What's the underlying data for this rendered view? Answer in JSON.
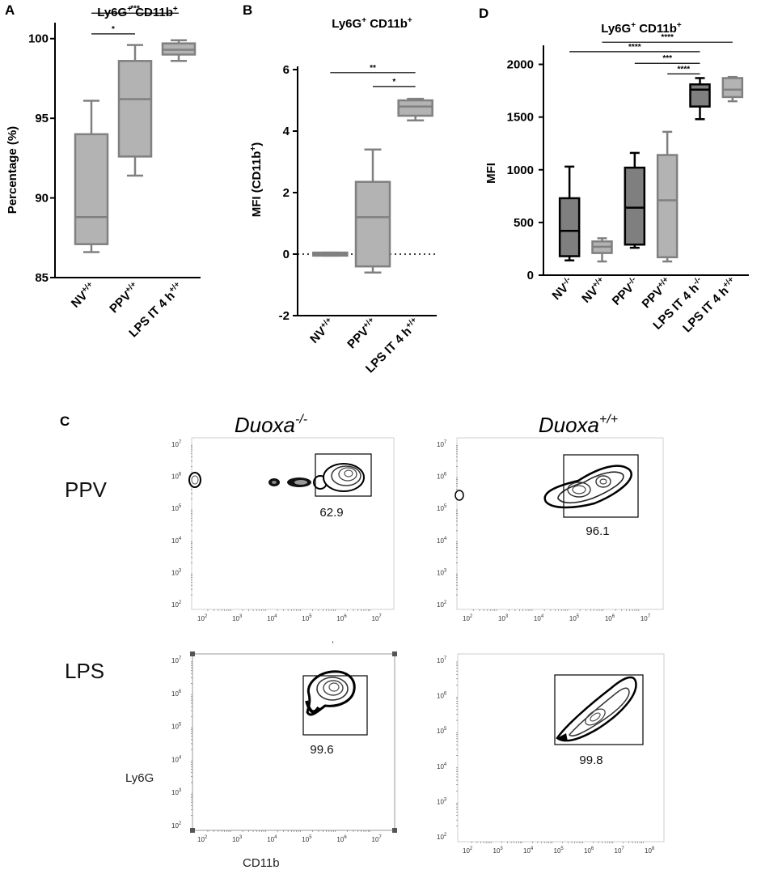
{
  "panel_letters": {
    "A": "A",
    "B": "B",
    "C": "C",
    "D": "D"
  },
  "chart_data": [
    {
      "id": "A",
      "type": "box",
      "title": "Ly6G+ CD11b+",
      "title_parts": {
        "p1": "Ly6G",
        "s1": "+",
        "p2": " CD11b",
        "s2": "+"
      },
      "ylabel": "Percentage (%)",
      "ylim": [
        85,
        100.8
      ],
      "yticks": [
        "85",
        "90",
        "95",
        "100"
      ],
      "categories": [
        {
          "base": "NV",
          "sup": "+/+"
        },
        {
          "base": "PPV",
          "sup": "+/+"
        },
        {
          "base": "LPS IT 4 h",
          "sup": "+/+"
        }
      ],
      "boxes": [
        {
          "min": 86.6,
          "q1": 87.1,
          "median": 88.8,
          "q3": 94.0,
          "max": 96.1,
          "color": "#b3b3b3"
        },
        {
          "min": 91.4,
          "q1": 92.6,
          "median": 96.2,
          "q3": 98.6,
          "max": 99.6,
          "color": "#b3b3b3"
        },
        {
          "min": 98.6,
          "q1": 99.0,
          "median": 99.3,
          "q3": 99.7,
          "max": 99.9,
          "color": "#b3b3b3"
        }
      ],
      "significance": [
        {
          "from": 1,
          "to": 2,
          "level": 102.9,
          "label": "*"
        },
        {
          "from": 0,
          "to": 2,
          "level": 101.6,
          "label": "***"
        },
        {
          "from": 0,
          "to": 1,
          "level": 100.3,
          "label": "*"
        }
      ]
    },
    {
      "id": "B",
      "type": "box",
      "title": "Ly6G+ CD11b+",
      "title_parts": {
        "p1": "Ly6G",
        "s1": "+",
        "p2": " CD11b",
        "s2": "+"
      },
      "ylabel": "MFI (CD11b+)",
      "ylabel_parts": {
        "p1": "MFI (CD11b",
        "s1": "+",
        "p2": ")"
      },
      "ylim": [
        -2,
        6
      ],
      "yticks": [
        "-2",
        "0",
        "2",
        "4",
        "6"
      ],
      "baseline": 0,
      "categories": [
        {
          "base": "NV",
          "sup": "+/+"
        },
        {
          "base": "PPV",
          "sup": "+/+"
        },
        {
          "base": "LPS IT 4 h",
          "sup": "+/+"
        }
      ],
      "boxes": [
        {
          "min": -0.05,
          "q1": -0.05,
          "median": 0.0,
          "q3": 0.05,
          "max": 0.05,
          "color": "#b3b3b3"
        },
        {
          "min": -0.6,
          "q1": -0.4,
          "median": 1.2,
          "q3": 2.35,
          "max": 3.4,
          "color": "#b3b3b3"
        },
        {
          "min": 4.35,
          "q1": 4.5,
          "median": 4.8,
          "q3": 5.0,
          "max": 5.05,
          "color": "#b3b3b3"
        }
      ],
      "significance": [
        {
          "from": 0,
          "to": 2,
          "level": 5.9,
          "label": "**"
        },
        {
          "from": 1,
          "to": 2,
          "level": 5.45,
          "label": "*"
        }
      ]
    },
    {
      "id": "D",
      "type": "box",
      "title": "Ly6G+ CD11b+",
      "title_parts": {
        "p1": "Ly6G",
        "s1": "+",
        "p2": " CD11b",
        "s2": "+"
      },
      "ylabel": "MFI",
      "ylim": [
        0,
        2150
      ],
      "yticks": [
        "0",
        "500",
        "1000",
        "1500",
        "2000"
      ],
      "categories": [
        {
          "base": "NV",
          "sup": "-/-"
        },
        {
          "base": "NV",
          "sup": "+/+"
        },
        {
          "base": "PPV",
          "sup": "-/-"
        },
        {
          "base": "PPV",
          "sup": "+/+"
        },
        {
          "base": "LPS IT 4 h",
          "sup": "-/-"
        },
        {
          "base": "LPS IT 4 h",
          "sup": "+/+"
        }
      ],
      "boxes": [
        {
          "min": 140,
          "q1": 180,
          "median": 420,
          "q3": 730,
          "max": 1030,
          "color": "#7f7f7f",
          "stroke": "#000000"
        },
        {
          "min": 130,
          "q1": 210,
          "median": 270,
          "q3": 320,
          "max": 350,
          "color": "#b3b3b3",
          "stroke": "#808080"
        },
        {
          "min": 260,
          "q1": 290,
          "median": 640,
          "q3": 1020,
          "max": 1160,
          "color": "#7f7f7f",
          "stroke": "#000000"
        },
        {
          "min": 130,
          "q1": 170,
          "median": 710,
          "q3": 1140,
          "max": 1360,
          "color": "#b3b3b3",
          "stroke": "#808080"
        },
        {
          "min": 1480,
          "q1": 1600,
          "median": 1760,
          "q3": 1810,
          "max": 1870,
          "color": "#7f7f7f",
          "stroke": "#000000"
        },
        {
          "min": 1650,
          "q1": 1690,
          "median": 1760,
          "q3": 1870,
          "max": 1880,
          "color": "#b3b3b3",
          "stroke": "#808080"
        }
      ],
      "significance": [
        {
          "from": 1,
          "to": 5,
          "level": 2210,
          "label": "****"
        },
        {
          "from": 0,
          "to": 4,
          "level": 2120,
          "label": "****"
        },
        {
          "from": 2,
          "to": 4,
          "level": 2010,
          "label": "***"
        },
        {
          "from": 3,
          "to": 4,
          "level": 1910,
          "label": "****"
        }
      ]
    },
    {
      "id": "C",
      "type": "flow_cytometry_contour",
      "xlabel": "CD11b",
      "ylabel": "Ly6G",
      "columns": [
        {
          "base": "Duoxa",
          "sup": "-/-"
        },
        {
          "base": "Duoxa",
          "sup": "+/+"
        }
      ],
      "rows": [
        "PPV",
        "LPS"
      ],
      "plots": [
        {
          "row": "PPV",
          "genotype": "-/-",
          "gate_percent": "62.9"
        },
        {
          "row": "PPV",
          "genotype": "+/+",
          "gate_percent": "96.1"
        },
        {
          "row": "LPS",
          "genotype": "-/-",
          "gate_percent": "99.6"
        },
        {
          "row": "LPS",
          "genotype": "+/+",
          "gate_percent": "99.8"
        }
      ],
      "x_ticks": [
        "2",
        "3",
        "4",
        "5",
        "6",
        "7"
      ],
      "x_ticks_ext": [
        "2",
        "3",
        "4",
        "5",
        "6",
        "7",
        "8"
      ],
      "y_ticks": [
        "2",
        "3",
        "4",
        "5",
        "6",
        "7"
      ]
    }
  ]
}
